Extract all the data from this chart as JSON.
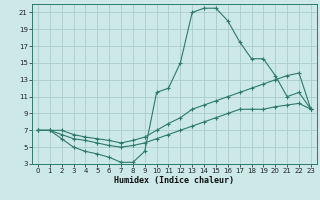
{
  "xlabel": "Humidex (Indice chaleur)",
  "xlim": [
    -0.5,
    23.5
  ],
  "ylim": [
    3,
    22
  ],
  "xticks": [
    0,
    1,
    2,
    3,
    4,
    5,
    6,
    7,
    8,
    9,
    10,
    11,
    12,
    13,
    14,
    15,
    16,
    17,
    18,
    19,
    20,
    21,
    22,
    23
  ],
  "yticks": [
    3,
    5,
    7,
    9,
    11,
    13,
    15,
    17,
    19,
    21
  ],
  "background_color": "#cce8e8",
  "grid_color": "#b0d0d0",
  "line_color": "#2d7a6a",
  "x_vals": [
    0,
    1,
    2,
    3,
    4,
    5,
    6,
    7,
    8,
    9,
    10,
    11,
    12,
    13,
    14,
    15,
    16,
    17,
    18,
    19,
    20,
    21,
    22,
    23
  ],
  "y_top": [
    7.0,
    7.0,
    6.0,
    5.0,
    4.5,
    4.2,
    3.8,
    3.2,
    3.2,
    4.5,
    11.5,
    12.0,
    15.0,
    21.0,
    21.5,
    21.5,
    20.0,
    17.5,
    15.5,
    15.5,
    13.5,
    11.0,
    11.5,
    9.5
  ],
  "y_mid": [
    7.0,
    7.0,
    7.0,
    6.5,
    6.2,
    6.0,
    5.8,
    5.5,
    5.8,
    6.2,
    7.0,
    7.8,
    8.5,
    9.5,
    10.0,
    10.5,
    11.0,
    11.5,
    12.0,
    12.5,
    13.0,
    13.5,
    13.8,
    9.5
  ],
  "y_bot": [
    7.0,
    7.0,
    6.5,
    6.0,
    5.8,
    5.5,
    5.2,
    5.0,
    5.2,
    5.5,
    6.0,
    6.5,
    7.0,
    7.5,
    8.0,
    8.5,
    9.0,
    9.5,
    9.5,
    9.5,
    9.8,
    10.0,
    10.2,
    9.5
  ]
}
